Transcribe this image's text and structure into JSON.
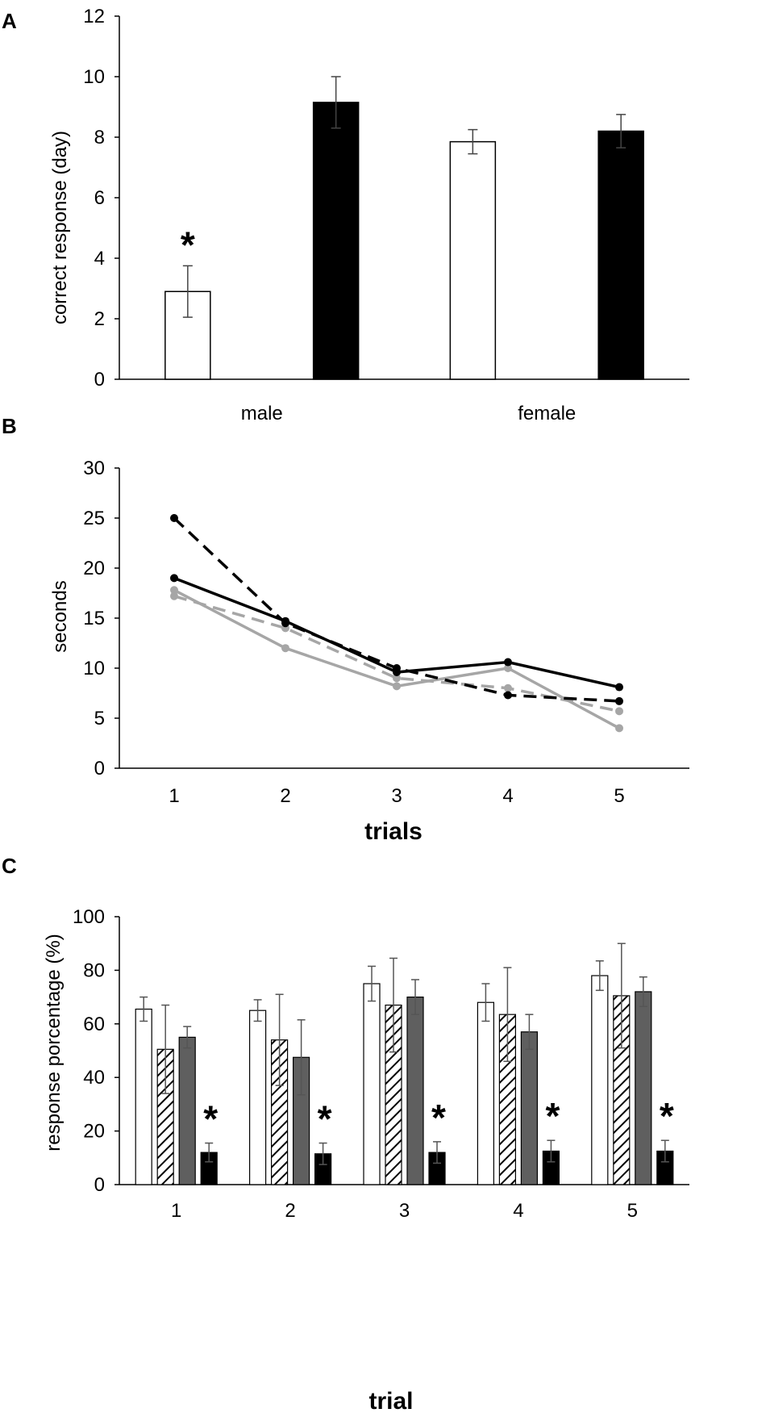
{
  "chart_data": [
    {
      "panel": "A",
      "type": "bar",
      "categories": [
        "male",
        "female"
      ],
      "series": [
        {
          "name": "white",
          "values": [
            2.9,
            7.85
          ],
          "errors": [
            0.85,
            0.4
          ]
        },
        {
          "name": "black",
          "values": [
            9.15,
            8.2
          ],
          "errors": [
            0.85,
            0.55
          ]
        }
      ],
      "ylabel": "correct response (day)",
      "xlabel": "",
      "ylim": [
        0,
        12
      ],
      "yticks": [
        "0",
        "2",
        "4",
        "6",
        "8",
        "10",
        "12"
      ],
      "annotation": "*"
    },
    {
      "panel": "B",
      "type": "line",
      "x": [
        "1",
        "2",
        "3",
        "4",
        "5"
      ],
      "series": [
        {
          "name": "black-dashed",
          "values": [
            25,
            14.5,
            10,
            7.3,
            6.7
          ]
        },
        {
          "name": "black-solid",
          "values": [
            19,
            14.7,
            9.6,
            10.6,
            8.1
          ]
        },
        {
          "name": "gray-dashed",
          "values": [
            17.2,
            14,
            9,
            8,
            5.7
          ]
        },
        {
          "name": "gray-solid",
          "values": [
            17.8,
            12,
            8.2,
            10,
            4
          ]
        }
      ],
      "ylabel": "seconds",
      "xlabel": "trials",
      "ylim": [
        0,
        30
      ],
      "yticks": [
        "0",
        "5",
        "10",
        "15",
        "20",
        "25",
        "30"
      ]
    },
    {
      "panel": "C",
      "type": "bar",
      "categories": [
        "1",
        "2",
        "3",
        "4",
        "5"
      ],
      "series": [
        {
          "name": "white",
          "values": [
            65.5,
            65,
            75,
            68,
            78
          ],
          "errors": [
            4.5,
            4,
            6.5,
            7,
            5.5
          ]
        },
        {
          "name": "hatched",
          "values": [
            50.5,
            54,
            67,
            63.5,
            70.5
          ],
          "errors": [
            16.5,
            17,
            17.5,
            17.5,
            19.5
          ]
        },
        {
          "name": "gray",
          "values": [
            55,
            47.5,
            70,
            57,
            72
          ],
          "errors": [
            4,
            14,
            6.5,
            6.5,
            5.5
          ]
        },
        {
          "name": "black",
          "values": [
            12,
            11.5,
            12,
            12.5,
            12.5
          ],
          "errors": [
            3.5,
            4,
            4,
            4,
            4
          ]
        }
      ],
      "ylabel": "response porcentage (%)",
      "xlabel": "trial",
      "ylim": [
        0,
        100
      ],
      "yticks": [
        "0",
        "20",
        "40",
        "60",
        "80",
        "100"
      ],
      "annotation": "*"
    }
  ]
}
